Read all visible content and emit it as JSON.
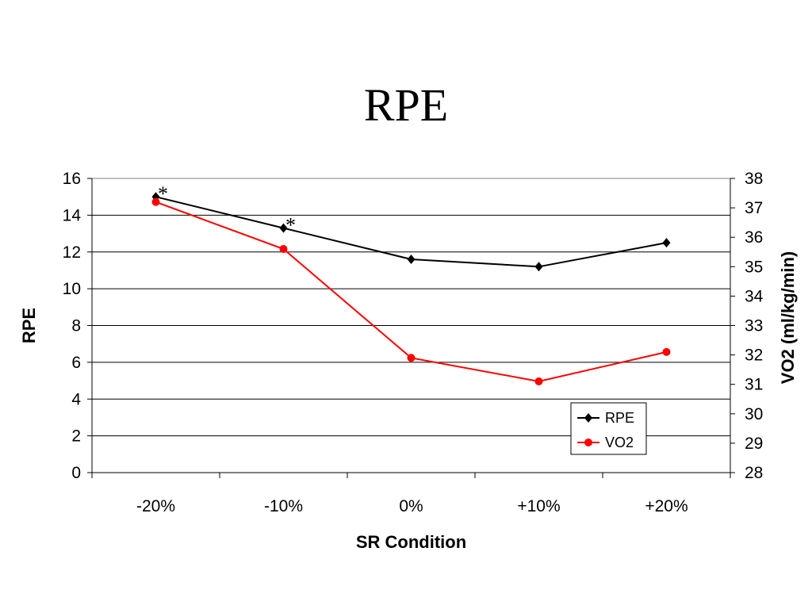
{
  "title": "RPE",
  "chart_data": {
    "type": "line",
    "title": "RPE",
    "categories": [
      "-20%",
      "-10%",
      "0%",
      "+10%",
      "+20%"
    ],
    "xlabel": "SR Condition",
    "ylabel": "RPE",
    "y2label": "VO2 (ml/kg/min)",
    "ylim": [
      0,
      16
    ],
    "y_ticks": [
      "0",
      "2",
      "4",
      "6",
      "8",
      "10",
      "12",
      "14",
      "16"
    ],
    "y2lim": [
      28,
      38
    ],
    "y2_ticks": [
      "28",
      "29",
      "30",
      "31",
      "32",
      "33",
      "34",
      "35",
      "36",
      "37",
      "38"
    ],
    "grid": "horizontal major gridlines on primary axis",
    "legend_position": "bottom-right",
    "series": [
      {
        "name": "RPE",
        "axis": "left",
        "color": "#000000",
        "marker": "diamond",
        "values": [
          15.0,
          13.3,
          11.6,
          11.2,
          12.5
        ]
      },
      {
        "name": "VO2",
        "axis": "right",
        "color": "#ff0000",
        "marker": "circle",
        "values": [
          37.2,
          35.6,
          31.9,
          31.1,
          32.1
        ]
      }
    ],
    "annotations": [
      {
        "text": "*",
        "category_index": 0
      },
      {
        "text": "*",
        "category_index": 1
      }
    ]
  }
}
